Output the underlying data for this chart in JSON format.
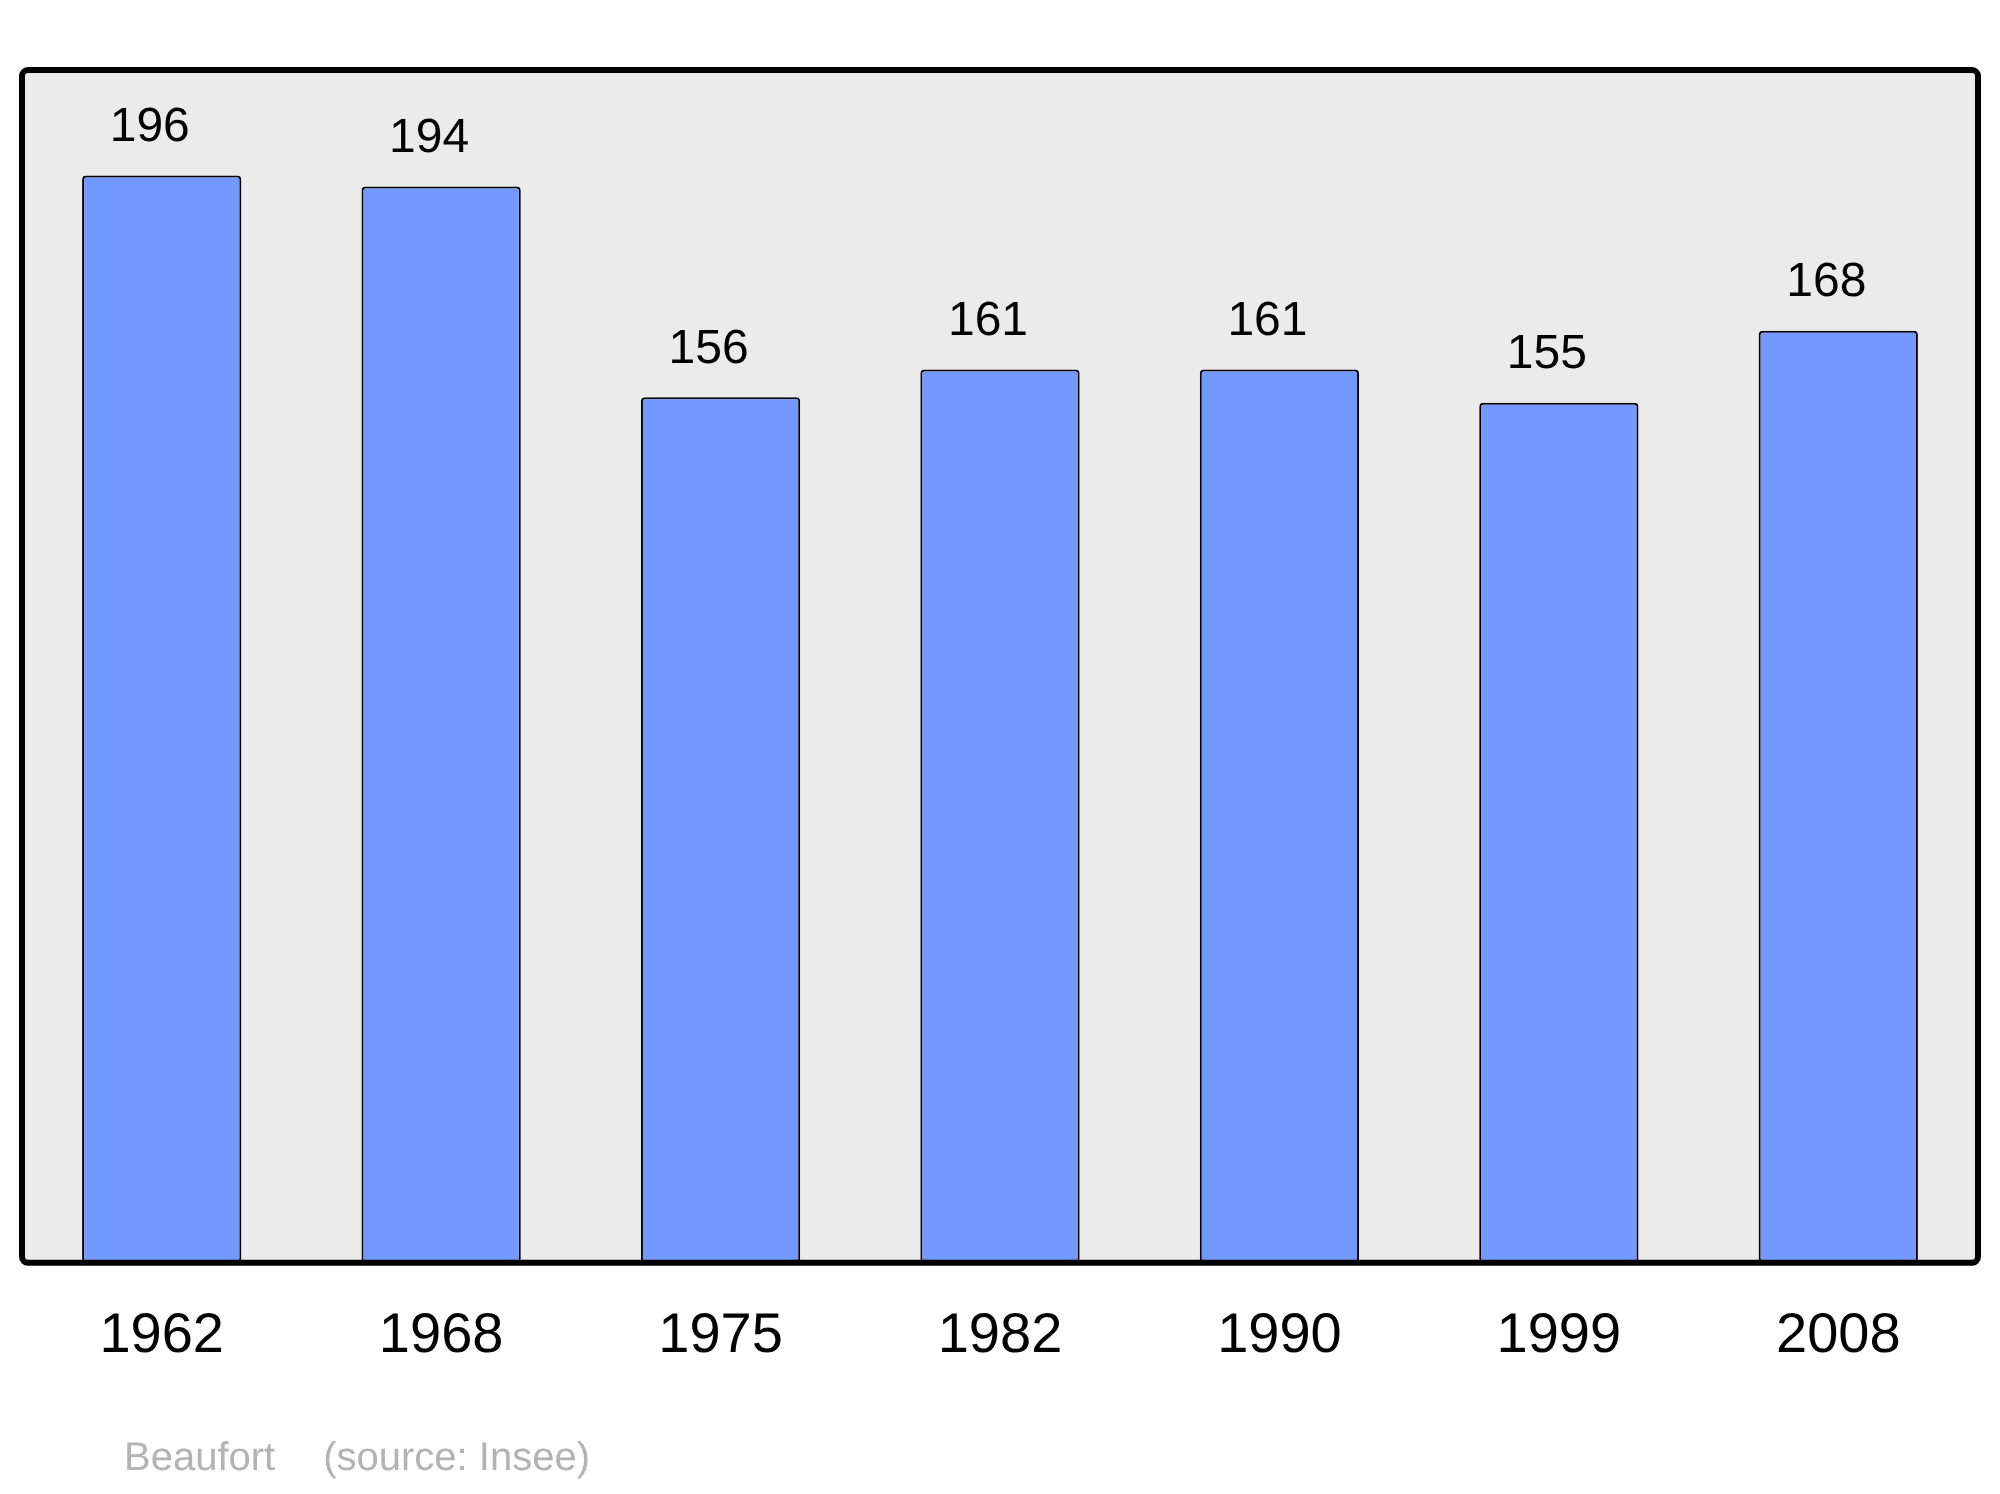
{
  "chart_data": {
    "type": "bar",
    "categories": [
      "1962",
      "1968",
      "1975",
      "1982",
      "1990",
      "1999",
      "2008"
    ],
    "values": [
      196,
      194,
      156,
      161,
      161,
      155,
      168
    ],
    "color": "#7399ff",
    "ylim": [
      0,
      215
    ],
    "data_labels": true,
    "legend": false,
    "annotations": [
      "Beaufort",
      "(source: Insee)"
    ]
  }
}
